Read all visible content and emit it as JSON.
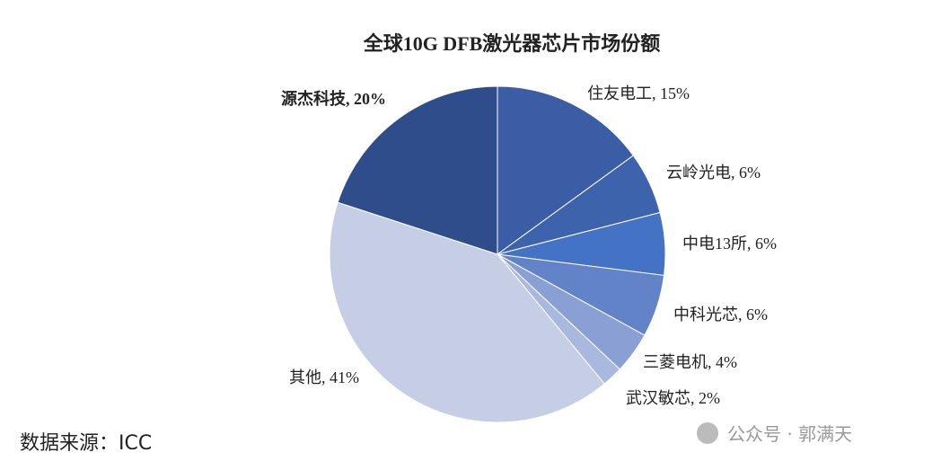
{
  "chart_data": {
    "type": "pie",
    "title": "全球10G DFB激光器芯片市场份额",
    "categories": [
      "住友电工",
      "云岭光电",
      "中电13所",
      "中科光芯",
      "三菱电机",
      "武汉敏芯",
      "其他",
      "源杰科技"
    ],
    "values": [
      15,
      6,
      6,
      6,
      4,
      2,
      41,
      20
    ],
    "value_labels": [
      "住友电工, 15%",
      "云岭光电, 6%",
      "中电13所, 6%",
      "中科光芯, 6%",
      "三菱电机, 4%",
      "武汉敏芯, 2%",
      "其他, 41%",
      "源杰科技, 20%"
    ],
    "colors": [
      "#3a5da5",
      "#3d63ad",
      "#4472c4",
      "#6383c9",
      "#8a9fd4",
      "#a9b8de",
      "#c6cee6",
      "#2f4d8b"
    ]
  },
  "source": "数据来源：ICC",
  "watermark": "公众号 · 郭满天"
}
